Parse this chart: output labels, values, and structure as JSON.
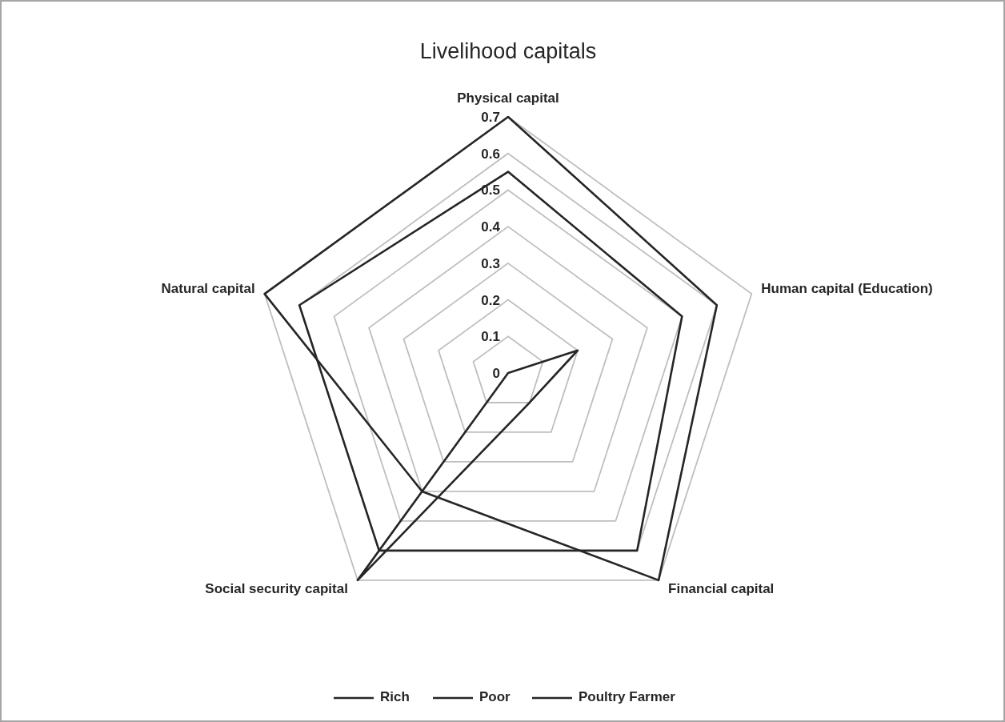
{
  "chart_data": {
    "type": "radar",
    "title": "Livelihood capitals",
    "categories": [
      "Physical capital",
      "Human capital (Education)",
      "Financial capital",
      "Social security capital",
      "Natural capital"
    ],
    "series": [
      {
        "name": "Rich",
        "color": "#262626",
        "values": [
          0.7,
          0.6,
          0.7,
          0.4,
          0.7
        ]
      },
      {
        "name": "Poor",
        "color": "#262626",
        "values": [
          0.55,
          0.5,
          0.6,
          0.6,
          0.6
        ]
      },
      {
        "name": "Poultry Farmer",
        "color": "#262626",
        "values": [
          0,
          0.2,
          0.1,
          0.7,
          0
        ]
      }
    ],
    "ylim": [
      0,
      0.7
    ],
    "yticks": [
      0,
      0.1,
      0.2,
      0.3,
      0.4,
      0.5,
      0.6,
      0.7
    ],
    "grid": true,
    "legend": "bottom",
    "marker": "none",
    "line_style": "solid"
  }
}
